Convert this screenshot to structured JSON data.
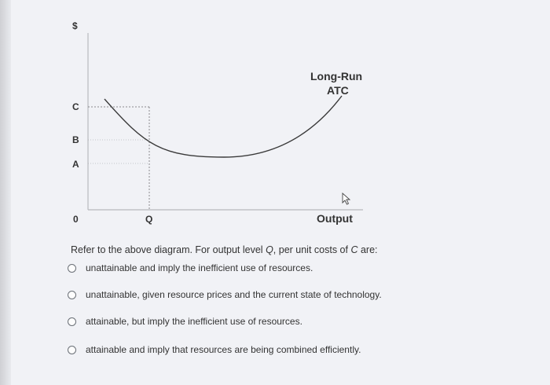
{
  "chart_data": {
    "type": "line",
    "y_axis_symbol": "$",
    "x_axis_label": "Output",
    "origin_label": "0",
    "y_ticks": [
      "C",
      "B",
      "A"
    ],
    "x_ticks": [
      "Q"
    ],
    "series": [
      {
        "name": "Long-Run ATC",
        "name_lines": [
          "Long-Run",
          "ATC"
        ]
      }
    ],
    "dashed_guides": [
      "C",
      "Q"
    ]
  },
  "question": {
    "prefix": "Refer to the above diagram. For output level ",
    "q_symbol": "Q",
    "middle": ", per unit costs of ",
    "c_symbol": "C",
    "suffix": " are:"
  },
  "options": [
    "unattainable and imply the inefficient use of resources.",
    "unattainable, given resource prices and the current state of technology.",
    "attainable, but imply the inefficient use of resources.",
    "attainable and imply that resources are being combined efficiently."
  ]
}
